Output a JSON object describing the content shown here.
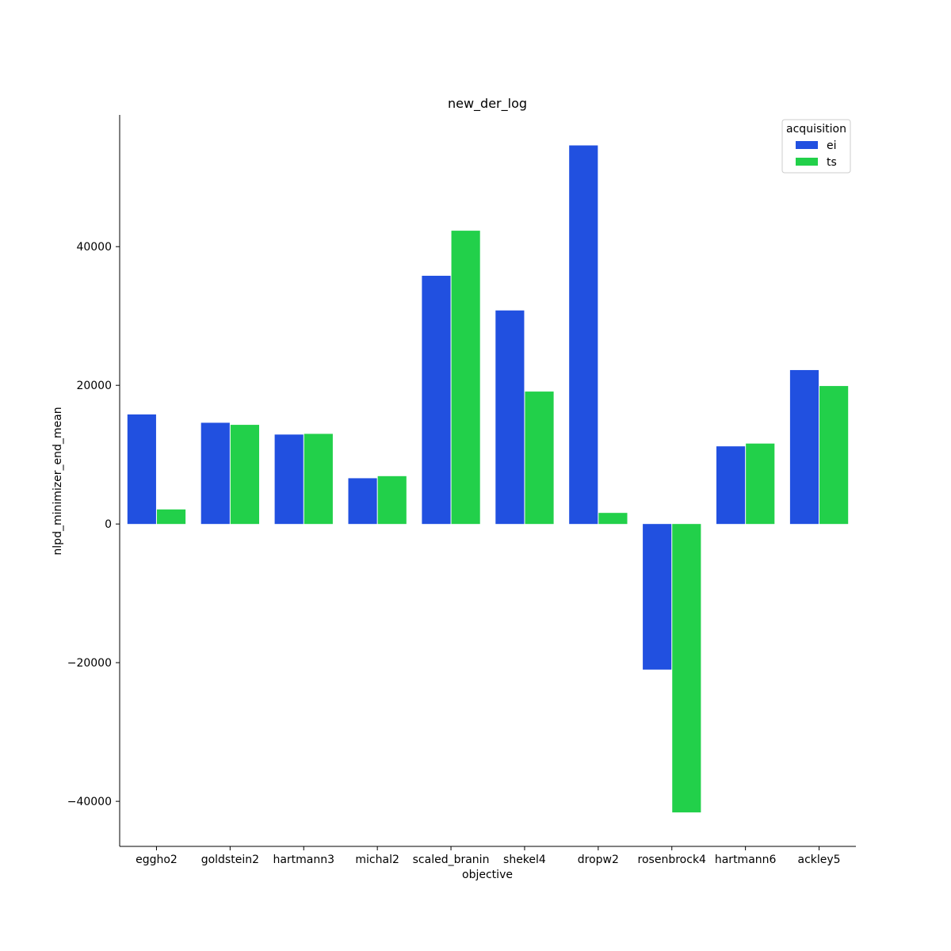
{
  "chart_data": {
    "type": "bar",
    "title": "new_der_log",
    "xlabel": "objective",
    "ylabel": "nlpd_minimizer_end_mean",
    "categories": [
      "eggho2",
      "goldstein2",
      "hartmann3",
      "michal2",
      "scaled_branin",
      "shekel4",
      "dropw2",
      "rosenbrock4",
      "hartmann6",
      "ackley5"
    ],
    "series": [
      {
        "name": "ei",
        "color": "#2150e0",
        "values": [
          15800,
          14600,
          12900,
          6600,
          35800,
          30800,
          54600,
          -21000,
          11200,
          22200
        ]
      },
      {
        "name": "ts",
        "color": "#22d04a",
        "values": [
          2100,
          14300,
          13000,
          6900,
          42300,
          19100,
          1600,
          -41600,
          11600,
          19900
        ]
      }
    ],
    "ylim": [
      -46500,
      59000
    ],
    "yticks": [
      -40000,
      -20000,
      0,
      20000,
      40000
    ],
    "ytick_labels": [
      "−40000",
      "−20000",
      "0",
      "20000",
      "40000"
    ],
    "grid": false,
    "legend": {
      "title": "acquisition",
      "position": "top-right"
    }
  }
}
